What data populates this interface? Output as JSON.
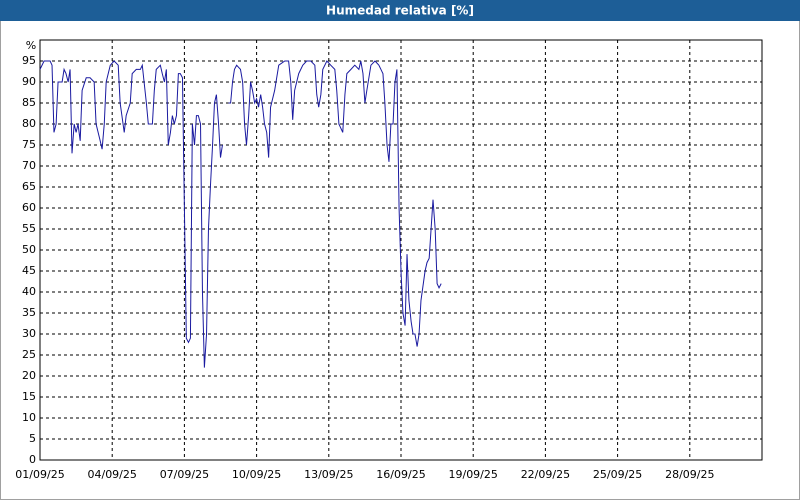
{
  "chart_data": {
    "type": "line",
    "title": "Humedad relativa [%]",
    "y_label": "%",
    "xlim": [
      1,
      31
    ],
    "ylim": [
      0,
      100
    ],
    "xticks": [
      {
        "value": 1,
        "label": "01/09/25"
      },
      {
        "value": 4,
        "label": "04/09/25"
      },
      {
        "value": 7,
        "label": "07/09/25"
      },
      {
        "value": 10,
        "label": "10/09/25"
      },
      {
        "value": 13,
        "label": "13/09/25"
      },
      {
        "value": 16,
        "label": "16/09/25"
      },
      {
        "value": 19,
        "label": "19/09/25"
      },
      {
        "value": 22,
        "label": "22/09/25"
      },
      {
        "value": 25,
        "label": "25/09/25"
      },
      {
        "value": 28,
        "label": "28/09/25"
      }
    ],
    "yticks": [
      0,
      5,
      10,
      15,
      20,
      25,
      30,
      35,
      40,
      45,
      50,
      55,
      60,
      65,
      70,
      75,
      80,
      85,
      90,
      95
    ],
    "grid": true,
    "x": [
      1.0,
      1.17,
      1.42,
      1.5,
      1.58,
      1.67,
      1.75,
      1.92,
      2.0,
      2.08,
      2.17,
      2.25,
      2.33,
      2.42,
      2.5,
      2.58,
      2.67,
      2.75,
      2.92,
      3.08,
      3.25,
      3.33,
      3.5,
      3.58,
      3.67,
      3.75,
      3.92,
      4.08,
      4.25,
      4.33,
      4.5,
      4.58,
      4.75,
      4.83,
      5.0,
      5.17,
      5.25,
      5.42,
      5.5,
      5.58,
      5.67,
      5.75,
      5.83,
      6.0,
      6.08,
      6.17,
      6.25,
      6.33,
      6.42,
      6.5,
      6.58,
      6.67,
      6.75,
      6.83,
      6.92,
      7.0,
      7.08,
      7.17,
      7.25,
      7.33,
      7.42,
      7.5,
      7.58,
      7.67,
      7.75,
      7.83,
      7.92,
      8.0,
      8.08,
      8.17,
      8.25,
      8.33,
      8.42,
      8.5,
      8.58,
      8.67,
      8.83,
      8.92,
      9.0,
      9.08,
      9.17,
      9.33,
      9.42,
      9.5,
      9.58,
      9.67,
      9.75,
      9.83,
      9.92,
      10.0,
      10.08,
      10.17,
      10.25,
      10.33,
      10.42,
      10.5,
      10.58,
      10.75,
      10.92,
      11.17,
      11.33,
      11.42,
      11.5,
      11.58,
      11.75,
      11.92,
      12.08,
      12.25,
      12.42,
      12.5,
      12.58,
      12.67,
      12.75,
      12.92,
      13.08,
      13.25,
      13.33,
      13.42,
      13.58,
      13.67,
      13.75,
      13.92,
      14.08,
      14.25,
      14.33,
      14.42,
      14.5,
      14.58,
      14.75,
      14.92,
      15.08,
      15.25,
      15.33,
      15.42,
      15.5,
      15.58,
      15.67,
      15.75,
      15.83,
      15.92,
      16.0,
      16.08,
      16.17,
      16.25,
      16.33,
      16.42,
      16.5,
      16.58,
      16.67,
      16.75,
      16.83,
      17.0,
      17.08,
      17.17,
      17.25,
      17.33,
      17.42,
      17.5,
      17.58,
      17.67
    ],
    "series": [
      {
        "color": "#1a1aa0",
        "values": [
          93,
          95,
          95,
          94,
          78,
          80,
          90,
          90,
          93,
          92,
          90,
          93,
          73,
          80,
          78,
          80,
          76,
          88,
          91,
          91,
          90,
          80,
          76,
          74,
          80,
          90,
          94,
          95,
          94,
          85,
          78,
          82,
          85,
          92,
          93,
          93,
          94,
          85,
          80,
          80,
          80,
          88,
          93,
          94,
          92,
          90,
          93,
          75,
          78,
          82,
          80,
          82,
          92,
          92,
          91,
          60,
          29,
          28,
          29,
          80,
          75,
          82,
          82,
          80,
          40,
          22,
          30,
          55,
          65,
          75,
          85,
          87,
          80,
          72,
          75,
          null,
          85,
          85,
          90,
          93,
          94,
          93,
          90,
          80,
          75,
          82,
          90,
          88,
          85,
          86,
          84,
          87,
          84,
          80,
          78,
          72,
          84,
          88,
          94,
          95,
          95,
          90,
          81,
          88,
          92,
          94,
          95,
          95,
          94,
          87,
          84,
          87,
          93,
          95,
          94,
          93,
          88,
          80,
          78,
          87,
          92,
          93,
          94,
          93,
          95,
          92,
          85,
          88,
          94,
          95,
          94,
          92,
          85,
          75,
          71,
          80,
          80,
          90,
          93,
          60,
          45,
          35,
          32,
          49,
          38,
          33,
          30,
          30,
          27,
          30,
          38,
          45,
          47,
          48,
          55,
          62,
          55,
          42,
          41,
          42
        ]
      }
    ]
  }
}
